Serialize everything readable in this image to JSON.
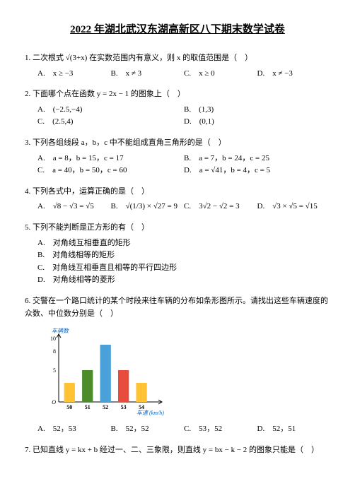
{
  "title": "2022 年湖北武汉东湖高新区八下期末数学试卷",
  "q1": {
    "text": "1. 二次根式 √(3+x) 在实数范围内有意义，则 x 的取值范围是（　）",
    "a": "A.　x ≥ −3",
    "b": "B.　x ≠ 3",
    "c": "C.　x ≥ 0",
    "d": "D.　x ≠ −3"
  },
  "q2": {
    "text": "2. 下面哪个点在函数 y = 2x − 1 的图象上（　）",
    "a": "A.　(−2.5,−4)",
    "b": "B.　(1,3)",
    "c": "C.　(2.5,4)",
    "d": "D.　(0,1)"
  },
  "q3": {
    "text": "3. 下列各组线段 a，b，c 中不能组成直角三角形的是（　）",
    "a": "A.　a = 8，b = 15，c = 17",
    "b": "B.　a = 7，b = 24，c = 25",
    "c": "C.　a = 40，b = 50，c = 60",
    "d": "D.　a = √41，b = 4，c = 5"
  },
  "q4": {
    "text": "4. 下列各式中，运算正确的是（　）",
    "a": "A.　√8 − √3 = √5",
    "b": "B.　√(1/3) × √27 = 9",
    "c": "C.　3√2 − √2 = 3",
    "d": "D.　√3 × √5 = √15"
  },
  "q5": {
    "text": "5. 下列不能判断是正方形的有（　）",
    "a": "A.　对角线互相垂直的矩形",
    "b": "B.　对角线相等的矩形",
    "c": "C.　对角线互相垂直且相等的平行四边形",
    "d": "D.　对角线相等的菱形"
  },
  "q6": {
    "text": "6. 交警在一个路口统计的某个时段来往车辆的分布如条形图所示。请找出这些车辆速度的众数、中位数分别是（　）",
    "a": "A.　52，53",
    "b": "B.　52，52",
    "c": "C.　53，52",
    "d": "D.　52，51"
  },
  "q7": {
    "text": "7. 已知直线 y = kx + b 经过一、二、三象限，则直线 y = bx − k − 2 的图象只能是（　）"
  },
  "chart": {
    "type": "bar",
    "ylabel": "车辆数",
    "xlabel": "车速 (km/h)",
    "categories": [
      "50",
      "51",
      "52",
      "53",
      "54"
    ],
    "values": [
      3,
      5,
      9,
      5,
      3
    ],
    "bar_colors": [
      "#ffc233",
      "#4c8c2b",
      "#4aa0d9",
      "#e74c3c",
      "#ffc233"
    ],
    "axis_color": "#000000",
    "ylim": [
      0,
      10
    ],
    "ytick_step": 5,
    "y_sublabels": [
      "5",
      "8",
      "10"
    ],
    "background_color": "#ffffff"
  }
}
